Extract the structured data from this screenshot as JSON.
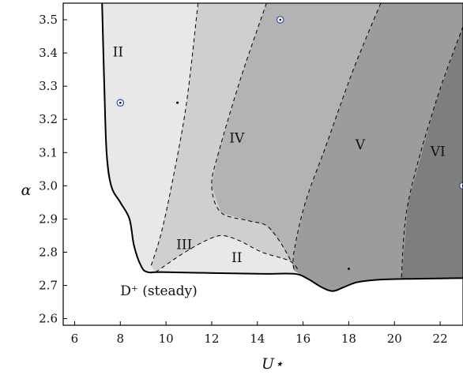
{
  "chart_data": {
    "type": "area",
    "xlabel": "U⋆",
    "ylabel": "α",
    "xlim": [
      5.5,
      23.0
    ],
    "ylim": [
      2.58,
      3.55
    ],
    "xticks": [
      "6",
      "8",
      "10",
      "12",
      "14",
      "16",
      "18",
      "20",
      "22"
    ],
    "yticks": [
      "2.6",
      "2.7",
      "2.8",
      "2.9",
      "3.0",
      "3.1",
      "3.2",
      "3.3",
      "3.4",
      "3.5"
    ],
    "grid": false,
    "stable_region_label": "D⁺ (steady)",
    "region_boundary": [
      [
        7.2,
        3.55
      ],
      [
        7.3,
        3.3
      ],
      [
        7.4,
        3.1
      ],
      [
        7.6,
        3.0
      ],
      [
        8.0,
        2.95
      ],
      [
        8.4,
        2.9
      ],
      [
        8.6,
        2.82
      ],
      [
        8.9,
        2.76
      ],
      [
        9.2,
        2.74
      ],
      [
        10.0,
        2.74
      ],
      [
        14.0,
        2.735
      ],
      [
        15.6,
        2.735
      ],
      [
        16.2,
        2.72
      ],
      [
        16.8,
        2.695
      ],
      [
        17.3,
        2.683
      ],
      [
        17.8,
        2.695
      ],
      [
        18.4,
        2.71
      ],
      [
        19.5,
        2.718
      ],
      [
        21.0,
        2.72
      ],
      [
        23.0,
        2.722
      ]
    ],
    "regions": [
      {
        "label": "II",
        "color": "#e8e8e8",
        "label_at": [
          7.9,
          3.39
        ]
      },
      {
        "label": "III",
        "color": "#cfcfcf",
        "label_at": [
          10.8,
          2.81
        ]
      },
      {
        "label": "II",
        "color": "#e8e8e8",
        "label_at": [
          13.1,
          2.77
        ]
      },
      {
        "label": "IV",
        "color": "#b3b3b3",
        "label_at": [
          13.1,
          3.13
        ]
      },
      {
        "label": "V",
        "color": "#9c9c9c",
        "label_at": [
          18.5,
          3.11
        ]
      },
      {
        "label": "VI",
        "color": "#7e7e7e",
        "label_at": [
          21.9,
          3.09
        ]
      }
    ],
    "dividers": [
      [
        [
          11.4,
          3.55
        ],
        [
          10.9,
          3.25
        ],
        [
          10.3,
          3.02
        ],
        [
          9.8,
          2.86
        ],
        [
          9.35,
          2.76
        ]
      ],
      [
        [
          9.55,
          2.74
        ],
        [
          10.6,
          2.79
        ],
        [
          11.6,
          2.83
        ],
        [
          12.4,
          2.85
        ],
        [
          13.2,
          2.835
        ],
        [
          14.2,
          2.8
        ],
        [
          15.4,
          2.774
        ],
        [
          15.8,
          2.745
        ]
      ],
      [
        [
          14.4,
          3.55
        ],
        [
          13.3,
          3.33
        ],
        [
          12.3,
          3.1
        ],
        [
          12.0,
          3.0
        ],
        [
          12.4,
          2.92
        ],
        [
          13.6,
          2.895
        ],
        [
          14.4,
          2.88
        ],
        [
          15.0,
          2.83
        ],
        [
          15.5,
          2.77
        ]
      ],
      [
        [
          19.4,
          3.55
        ],
        [
          18.2,
          3.35
        ],
        [
          17.0,
          3.12
        ],
        [
          16.1,
          2.95
        ],
        [
          15.6,
          2.8
        ],
        [
          15.6,
          2.745
        ]
      ],
      [
        [
          23.0,
          3.48
        ],
        [
          21.8,
          3.25
        ],
        [
          20.6,
          2.95
        ],
        [
          20.3,
          2.72
        ]
      ]
    ],
    "circle_markers": [
      [
        8.0,
        3.25
      ],
      [
        15.0,
        3.5
      ],
      [
        23.0,
        3.0
      ]
    ],
    "dot_markers": [
      [
        10.5,
        3.25
      ],
      [
        18.0,
        2.75
      ]
    ],
    "marker_color": "#2a4fa0"
  }
}
